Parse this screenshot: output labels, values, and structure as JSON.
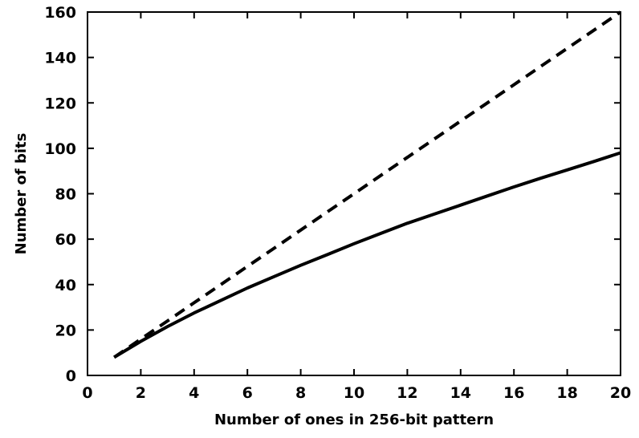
{
  "chart_data": {
    "type": "line",
    "title": "",
    "xlabel": "Number of ones in 256-bit pattern",
    "ylabel": "Number of bits",
    "xlim": [
      0,
      20
    ],
    "ylim": [
      0,
      160
    ],
    "x_ticks": [
      0,
      2,
      4,
      6,
      8,
      10,
      12,
      14,
      16,
      18,
      20
    ],
    "y_ticks": [
      0,
      20,
      40,
      60,
      80,
      100,
      120,
      140,
      160
    ],
    "grid": false,
    "legend": "none",
    "series": [
      {
        "style": "dashed",
        "color": "#000000",
        "x": [
          1,
          2,
          3,
          4,
          5,
          6,
          7,
          8,
          9,
          10,
          11,
          12,
          13,
          14,
          15,
          16,
          17,
          18,
          19,
          20
        ],
        "y": [
          8,
          16,
          24,
          32,
          40,
          48,
          56,
          64,
          72,
          80,
          88,
          96,
          104,
          112,
          120,
          128,
          136,
          144,
          152,
          160
        ]
      },
      {
        "style": "solid",
        "color": "#000000",
        "x": [
          1,
          2,
          3,
          4,
          5,
          6,
          7,
          8,
          9,
          10,
          11,
          12,
          13,
          14,
          15,
          16,
          17,
          18,
          19,
          20
        ],
        "y": [
          8,
          15,
          21.5,
          27.5,
          33,
          38.5,
          43.5,
          48.5,
          53.2,
          58,
          62.5,
          67,
          71,
          75,
          79,
          83,
          86.8,
          90.5,
          94.2,
          98
        ]
      }
    ]
  }
}
